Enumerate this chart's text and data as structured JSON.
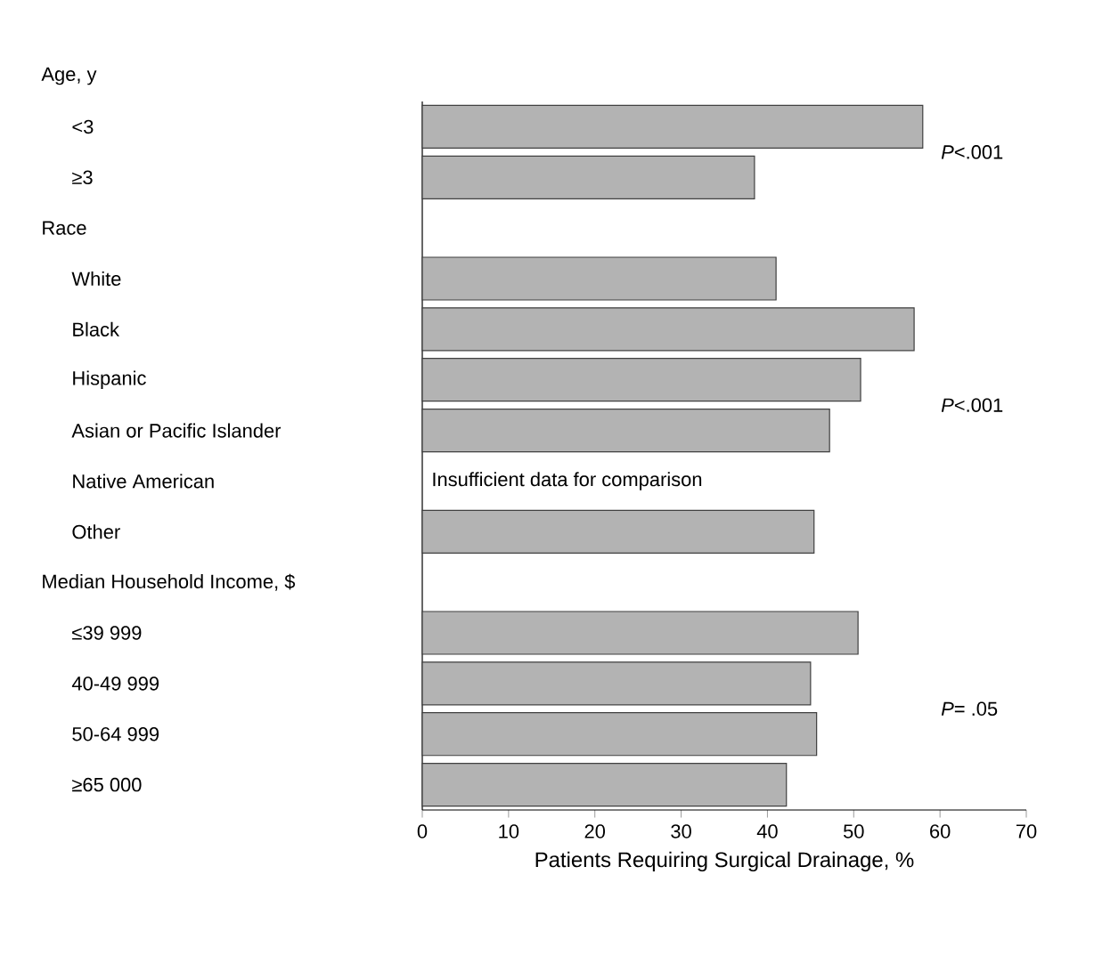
{
  "chart_data": {
    "type": "bar",
    "orientation": "horizontal",
    "xlabel": "Patients Requiring Surgical Drainage, %",
    "categories": [
      null,
      "<3",
      "≥3",
      null,
      "White",
      "Black",
      "Hispanic",
      "Asian or Pacific Islander",
      "Native American",
      "Other",
      null,
      "≤39 999",
      "40-49 999",
      "50-64 999",
      "≥65 000"
    ],
    "values": [
      null,
      58,
      38.5,
      null,
      41,
      57,
      50.8,
      47.2,
      null,
      45.4,
      null,
      50.5,
      45,
      45.7,
      42.2
    ],
    "color": "#b3b3b3",
    "xlim": [
      0,
      70
    ],
    "xticks": [
      0,
      10,
      20,
      30,
      40,
      50,
      60,
      70
    ],
    "annotations": [
      "Age, y",
      "Race",
      "Median Household Income, $",
      "*P*<.001",
      "*P*<.001",
      "*P*= .05",
      {
        "text": "Insufficient data for comparison",
        "x": 0,
        "y": "Native American"
      }
    ]
  }
}
